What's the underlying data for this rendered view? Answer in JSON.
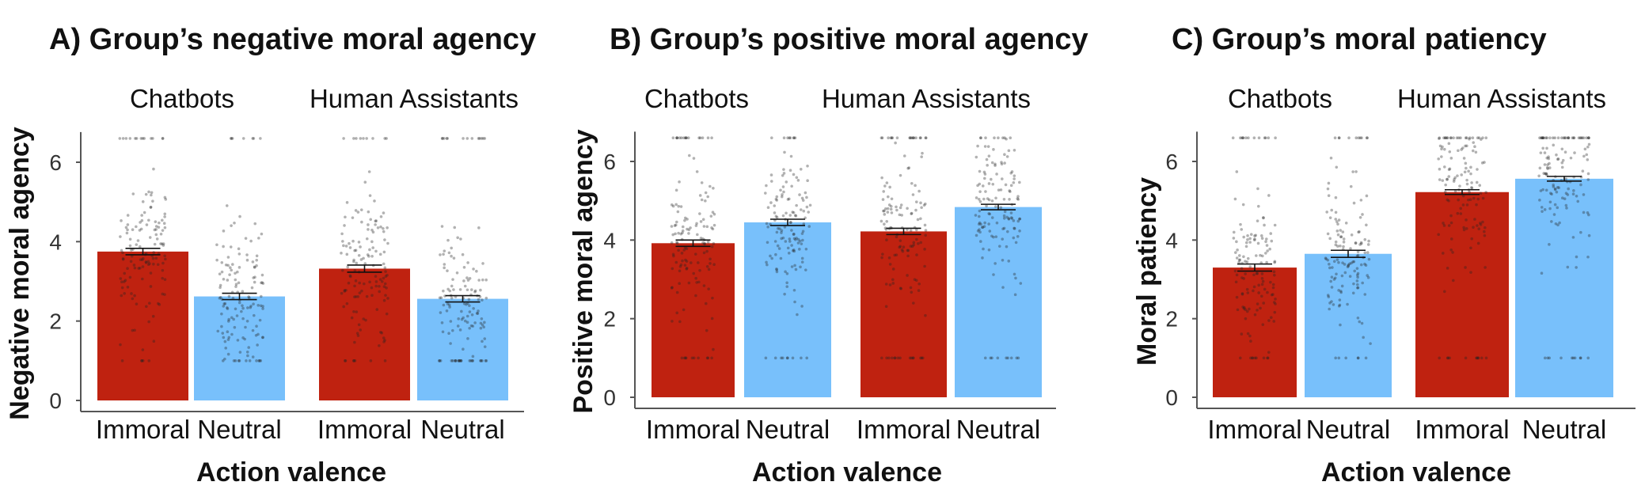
{
  "colors": {
    "immoral": "#bf2210",
    "neutral": "#78c0fb",
    "axis": "#555555",
    "points": "#222222"
  },
  "chart_data": [
    {
      "type": "bar",
      "title": "A) Group’s negative moral agency",
      "ylabel": "Negative moral agency",
      "xlabel": "Action valence",
      "ylim": [
        0,
        7
      ],
      "yticks": [
        "0",
        "2",
        "4",
        "6"
      ],
      "facets": [
        {
          "label": "Chatbots",
          "categories": [
            "Immoral",
            "Neutral"
          ],
          "values": [
            3.75,
            2.62
          ],
          "errors": [
            0.08,
            0.08
          ]
        },
        {
          "label": "Human Assistants",
          "categories": [
            "Immoral",
            "Neutral"
          ],
          "values": [
            3.32,
            2.56
          ],
          "errors": [
            0.09,
            0.08
          ]
        }
      ]
    },
    {
      "type": "bar",
      "title": "B) Group’s positive moral agency",
      "ylabel": "Positive moral agency",
      "xlabel": "Action valence",
      "ylim": [
        0,
        7
      ],
      "yticks": [
        "0",
        "2",
        "4",
        "6"
      ],
      "facets": [
        {
          "label": "Chatbots",
          "categories": [
            "Immoral",
            "Neutral"
          ],
          "values": [
            3.92,
            4.45
          ],
          "errors": [
            0.08,
            0.08
          ]
        },
        {
          "label": "Human Assistants",
          "categories": [
            "Immoral",
            "Neutral"
          ],
          "values": [
            4.22,
            4.84
          ],
          "errors": [
            0.08,
            0.07
          ]
        }
      ]
    },
    {
      "type": "bar",
      "title": "C) Group’s moral patiency",
      "ylabel": "Moral patiency",
      "xlabel": "Action valence",
      "ylim": [
        0,
        7
      ],
      "yticks": [
        "0",
        "2",
        "4",
        "6"
      ],
      "facets": [
        {
          "label": "Chatbots",
          "categories": [
            "Immoral",
            "Neutral"
          ],
          "values": [
            3.3,
            3.65
          ],
          "errors": [
            0.09,
            0.09
          ]
        },
        {
          "label": "Human Assistants",
          "categories": [
            "Immoral",
            "Neutral"
          ],
          "values": [
            5.22,
            5.56
          ],
          "errors": [
            0.06,
            0.06
          ]
        }
      ]
    }
  ]
}
